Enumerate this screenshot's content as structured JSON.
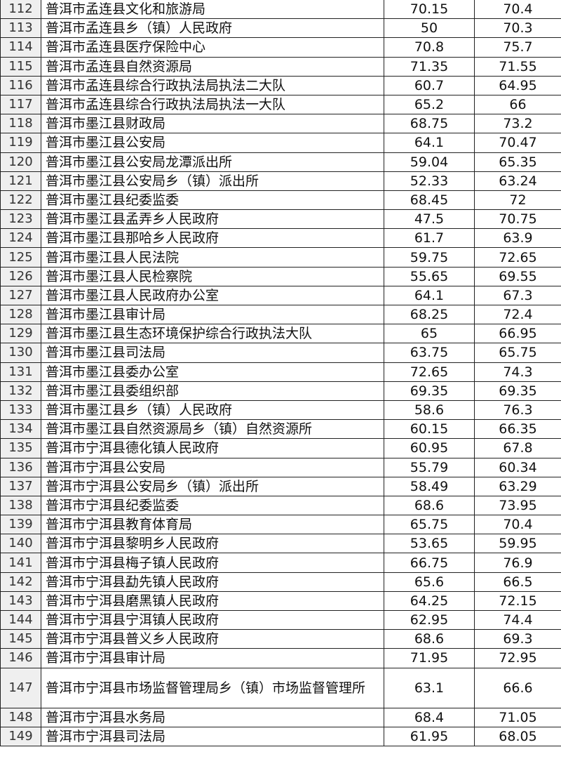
{
  "rows": [
    {
      "no": "112",
      "name": "普洱市孟连县文化和旅游局",
      "s1": "70.15",
      "s2": "70.4"
    },
    {
      "no": "113",
      "name": "普洱市孟连县乡（镇）人民政府",
      "s1": "50",
      "s2": "70.3"
    },
    {
      "no": "114",
      "name": "普洱市孟连县医疗保险中心",
      "s1": "70.8",
      "s2": "75.7"
    },
    {
      "no": "115",
      "name": "普洱市孟连县自然资源局",
      "s1": "71.35",
      "s2": "71.55"
    },
    {
      "no": "116",
      "name": "普洱市孟连县综合行政执法局执法二大队",
      "s1": "60.7",
      "s2": "64.95"
    },
    {
      "no": "117",
      "name": "普洱市孟连县综合行政执法局执法一大队",
      "s1": "65.2",
      "s2": "66"
    },
    {
      "no": "118",
      "name": "普洱市墨江县财政局",
      "s1": "68.75",
      "s2": "73.2"
    },
    {
      "no": "119",
      "name": "普洱市墨江县公安局",
      "s1": "64.1",
      "s2": "70.47"
    },
    {
      "no": "120",
      "name": "普洱市墨江县公安局龙潭派出所",
      "s1": "59.04",
      "s2": "65.35"
    },
    {
      "no": "121",
      "name": "普洱市墨江县公安局乡（镇）派出所",
      "s1": "52.33",
      "s2": "63.24"
    },
    {
      "no": "122",
      "name": "普洱市墨江县纪委监委",
      "s1": "68.45",
      "s2": "72"
    },
    {
      "no": "123",
      "name": "普洱市墨江县孟弄乡人民政府",
      "s1": "47.5",
      "s2": "70.75"
    },
    {
      "no": "124",
      "name": "普洱市墨江县那哈乡人民政府",
      "s1": "61.7",
      "s2": "63.9"
    },
    {
      "no": "125",
      "name": "普洱市墨江县人民法院",
      "s1": "59.75",
      "s2": "72.65"
    },
    {
      "no": "126",
      "name": "普洱市墨江县人民检察院",
      "s1": "55.65",
      "s2": "69.55"
    },
    {
      "no": "127",
      "name": "普洱市墨江县人民政府办公室",
      "s1": "64.1",
      "s2": "67.3"
    },
    {
      "no": "128",
      "name": "普洱市墨江县审计局",
      "s1": "68.25",
      "s2": "72.4"
    },
    {
      "no": "129",
      "name": "普洱市墨江县生态环境保护综合行政执法大队",
      "s1": "65",
      "s2": "66.95"
    },
    {
      "no": "130",
      "name": "普洱市墨江县司法局",
      "s1": "63.75",
      "s2": "65.75"
    },
    {
      "no": "131",
      "name": "普洱市墨江县委办公室",
      "s1": "72.65",
      "s2": "74.3"
    },
    {
      "no": "132",
      "name": "普洱市墨江县委组织部",
      "s1": "69.35",
      "s2": "69.35"
    },
    {
      "no": "133",
      "name": "普洱市墨江县乡（镇）人民政府",
      "s1": "58.6",
      "s2": "76.3"
    },
    {
      "no": "134",
      "name": "普洱市墨江县自然资源局乡（镇）自然资源所",
      "s1": "60.15",
      "s2": "66.35"
    },
    {
      "no": "135",
      "name": "普洱市宁洱县德化镇人民政府",
      "s1": "60.95",
      "s2": "67.8"
    },
    {
      "no": "136",
      "name": "普洱市宁洱县公安局",
      "s1": "55.79",
      "s2": "60.34"
    },
    {
      "no": "137",
      "name": "普洱市宁洱县公安局乡（镇）派出所",
      "s1": "58.49",
      "s2": "63.29"
    },
    {
      "no": "138",
      "name": "普洱市宁洱县纪委监委",
      "s1": "68.6",
      "s2": "73.95"
    },
    {
      "no": "139",
      "name": "普洱市宁洱县教育体育局",
      "s1": "65.75",
      "s2": "70.4"
    },
    {
      "no": "140",
      "name": "普洱市宁洱县黎明乡人民政府",
      "s1": "53.65",
      "s2": "59.95"
    },
    {
      "no": "141",
      "name": "普洱市宁洱县梅子镇人民政府",
      "s1": "66.75",
      "s2": "76.9"
    },
    {
      "no": "142",
      "name": "普洱市宁洱县勐先镇人民政府",
      "s1": "65.6",
      "s2": "66.5"
    },
    {
      "no": "143",
      "name": "普洱市宁洱县磨黑镇人民政府",
      "s1": "64.25",
      "s2": "72.15"
    },
    {
      "no": "144",
      "name": "普洱市宁洱县宁洱镇人民政府",
      "s1": "62.95",
      "s2": "74.4"
    },
    {
      "no": "145",
      "name": "普洱市宁洱县普义乡人民政府",
      "s1": "68.6",
      "s2": "69.3"
    },
    {
      "no": "146",
      "name": "普洱市宁洱县审计局",
      "s1": "71.95",
      "s2": "72.95"
    },
    {
      "no": "147",
      "name": "普洱市宁洱县市场监督管理局乡（镇）市场监督管理所",
      "s1": "63.1",
      "s2": "66.6"
    },
    {
      "no": "148",
      "name": "普洱市宁洱县水务局",
      "s1": "68.4",
      "s2": "71.05"
    },
    {
      "no": "149",
      "name": "普洱市宁洱县司法局",
      "s1": "61.95",
      "s2": "68.05"
    }
  ]
}
